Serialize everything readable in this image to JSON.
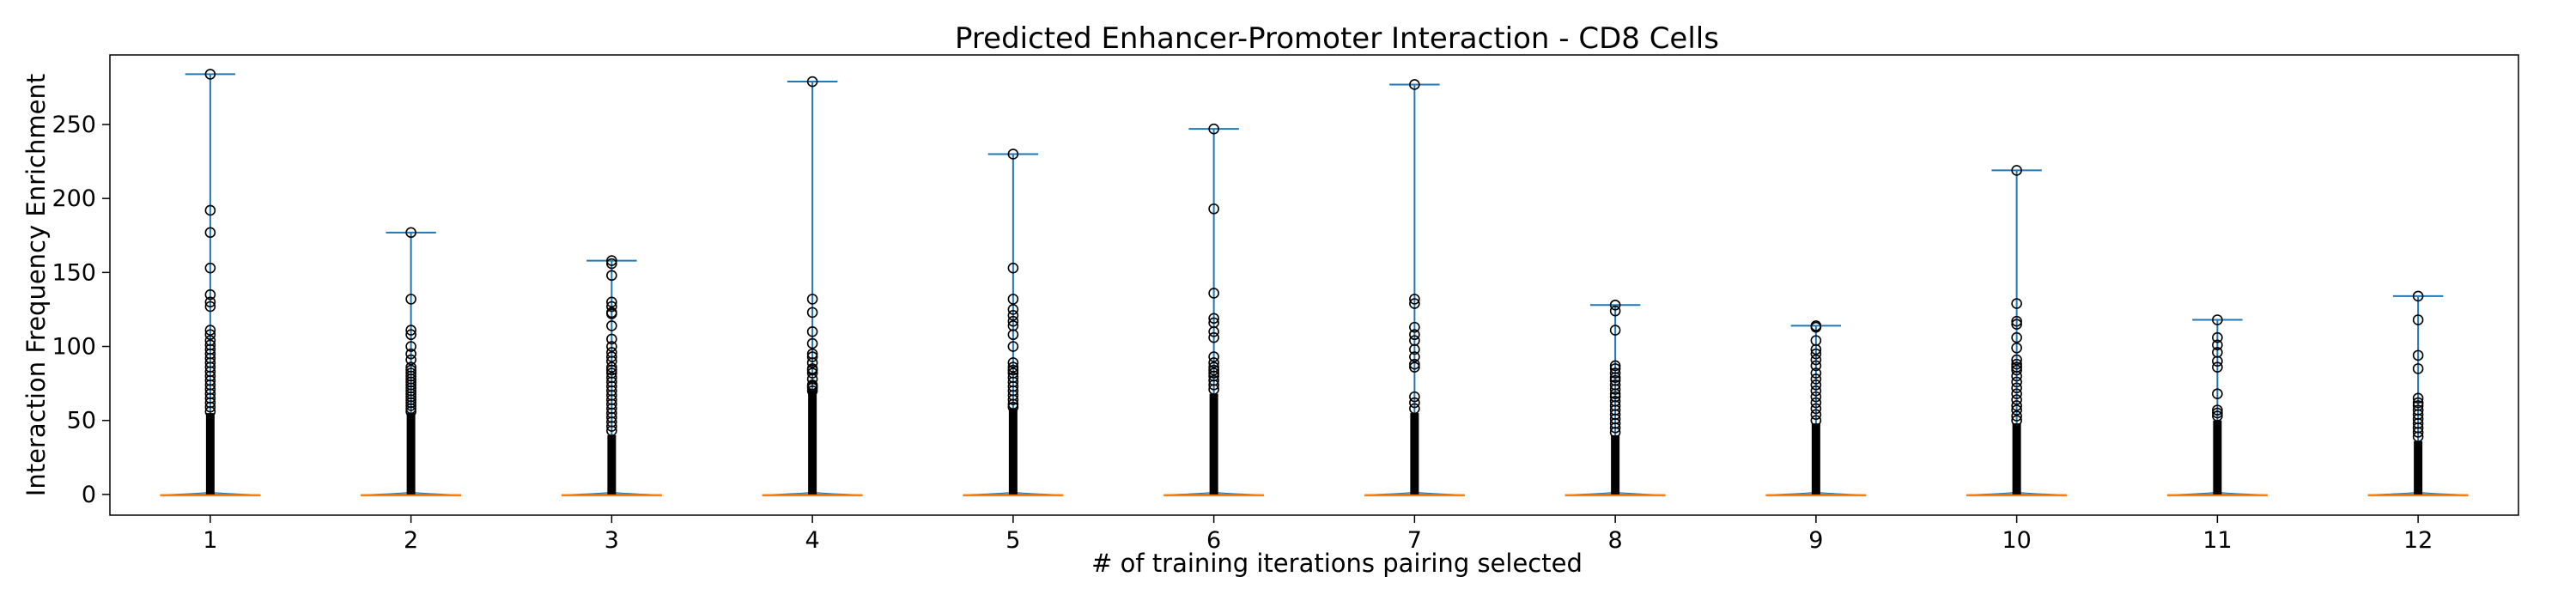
{
  "chart_data": {
    "type": "violin",
    "title": "Predicted Enhancer-Promoter Interaction - CD8 Cells",
    "xlabel": "# of training iterations pairing selected",
    "ylabel": "Interaction Frequency Enrichment",
    "xlim": [
      0.5,
      12.5
    ],
    "ylim": [
      -14,
      297
    ],
    "yticks": [
      0,
      50,
      100,
      150,
      200,
      250
    ],
    "grid": false,
    "colors": {
      "violin": "#1f77b4",
      "median": "#ff7f0e",
      "outlier_stroke": "#000000"
    },
    "categories": [
      {
        "x": 1,
        "label": "1",
        "max": 284,
        "min": 0,
        "median": 0,
        "dense_top": 55,
        "sparse_max": 112,
        "outliers": [
          284,
          192,
          177,
          153,
          135,
          130,
          127,
          111,
          108,
          104,
          101,
          98,
          95,
          92,
          89,
          86,
          83,
          80,
          77,
          74,
          71,
          68,
          65,
          62,
          59,
          56
        ]
      },
      {
        "x": 2,
        "label": "2",
        "max": 177,
        "min": 0,
        "median": 0,
        "dense_top": 55,
        "sparse_max": 85,
        "outliers": [
          177,
          132,
          111,
          108,
          100,
          95,
          91,
          86,
          84,
          82,
          80,
          78,
          76,
          74,
          72,
          70,
          68,
          66,
          64,
          62,
          60,
          58,
          56
        ]
      },
      {
        "x": 3,
        "label": "3",
        "max": 158,
        "min": 0,
        "median": 0,
        "dense_top": 40,
        "sparse_max": 85,
        "outliers": [
          158,
          156,
          148,
          130,
          127,
          123,
          122,
          114,
          105,
          100,
          96,
          93,
          90,
          86,
          84,
          82,
          79,
          76,
          73,
          70,
          67,
          64,
          61,
          58,
          55,
          52,
          49,
          46,
          43
        ]
      },
      {
        "x": 4,
        "label": "4",
        "max": 279,
        "min": 0,
        "median": 0,
        "dense_top": 70,
        "sparse_max": 95,
        "outliers": [
          279,
          132,
          123,
          110,
          102,
          95,
          93,
          89,
          85,
          84,
          82,
          78,
          74,
          73,
          72,
          70
        ]
      },
      {
        "x": 5,
        "label": "5",
        "max": 230,
        "min": 0,
        "median": 0,
        "dense_top": 58,
        "sparse_max": 90,
        "outliers": [
          230,
          153,
          132,
          125,
          121,
          117,
          114,
          108,
          100,
          89,
          86,
          84,
          82,
          79,
          76,
          73,
          70,
          67,
          64,
          61,
          59
        ]
      },
      {
        "x": 6,
        "label": "6",
        "max": 247,
        "min": 0,
        "median": 0,
        "dense_top": 68,
        "sparse_max": 95,
        "outliers": [
          247,
          193,
          136,
          119,
          116,
          110,
          106,
          93,
          89,
          86,
          84,
          82,
          80,
          77,
          74,
          71
        ]
      },
      {
        "x": 7,
        "label": "7",
        "max": 277,
        "min": 0,
        "median": 0,
        "dense_top": 55,
        "sparse_max": 70,
        "outliers": [
          277,
          132,
          129,
          113,
          108,
          104,
          98,
          93,
          88,
          86,
          66,
          62,
          58
        ]
      },
      {
        "x": 8,
        "label": "8",
        "max": 128,
        "min": 0,
        "median": 0,
        "dense_top": 40,
        "sparse_max": 70,
        "outliers": [
          128,
          124,
          111,
          87,
          85,
          82,
          79,
          77,
          74,
          71,
          68,
          66,
          63,
          60,
          57,
          54,
          51,
          48,
          45,
          42
        ]
      },
      {
        "x": 9,
        "label": "9",
        "max": 114,
        "min": 0,
        "median": 0,
        "dense_top": 48,
        "sparse_max": 70,
        "outliers": [
          114,
          113,
          104,
          98,
          95,
          91,
          87,
          82,
          78,
          74,
          70,
          66,
          62,
          58,
          54,
          50
        ]
      },
      {
        "x": 10,
        "label": "10",
        "max": 219,
        "min": 0,
        "median": 0,
        "dense_top": 48,
        "sparse_max": 70,
        "outliers": [
          219,
          129,
          117,
          115,
          106,
          99,
          91,
          88,
          86,
          84,
          80,
          76,
          72,
          68,
          64,
          60,
          57,
          53,
          50
        ]
      },
      {
        "x": 11,
        "label": "11",
        "max": 118,
        "min": 0,
        "median": 0,
        "dense_top": 50,
        "sparse_max": 65,
        "outliers": [
          118,
          106,
          101,
          96,
          90,
          86,
          68,
          57,
          55,
          53
        ]
      },
      {
        "x": 12,
        "label": "12",
        "max": 134,
        "min": 0,
        "median": 0,
        "dense_top": 36,
        "sparse_max": 50,
        "outliers": [
          134,
          118,
          94,
          85,
          65,
          62,
          60,
          57,
          54,
          51,
          48,
          45,
          42,
          39
        ]
      }
    ]
  }
}
